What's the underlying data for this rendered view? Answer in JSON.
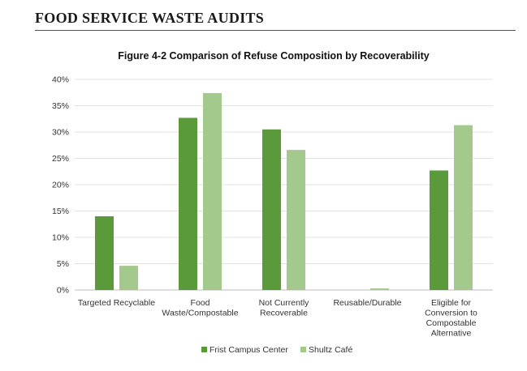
{
  "header": {
    "title": "FOOD SERVICE WASTE AUDITS"
  },
  "chart_data": {
    "type": "bar",
    "title": "Figure 4-2  Comparison of Refuse Composition by Recoverability",
    "xlabel": "",
    "ylabel": "",
    "ylim": [
      0,
      40
    ],
    "yticks": [
      "0%",
      "5%",
      "10%",
      "15%",
      "20%",
      "25%",
      "30%",
      "35%",
      "40%"
    ],
    "grid": true,
    "legend_position": "bottom",
    "categories": [
      [
        "Targeted Recyclable"
      ],
      [
        "Food",
        "Waste/Compostable"
      ],
      [
        "Not Currently",
        "Recoverable"
      ],
      [
        "Reusable/Durable"
      ],
      [
        "Eligible for",
        "Conversion to",
        "Compostable",
        "Alternative"
      ]
    ],
    "series": [
      {
        "name": "Frist Campus Center",
        "color": "#5b9a3b",
        "values": [
          14.0,
          32.7,
          30.5,
          0.0,
          22.7
        ]
      },
      {
        "name": "Shultz Café",
        "color": "#a3c98c",
        "values": [
          4.6,
          37.4,
          26.6,
          0.3,
          31.3
        ]
      }
    ]
  }
}
